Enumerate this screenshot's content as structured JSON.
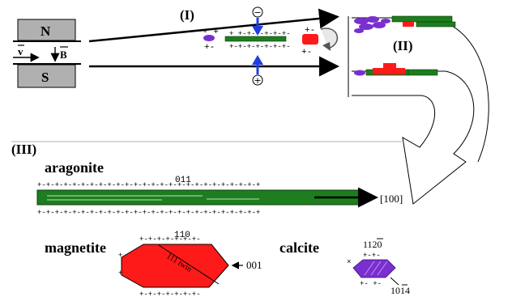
{
  "magnet": {
    "north": "N",
    "south": "S",
    "velocity": "v",
    "field": "B"
  },
  "panels": {
    "stage1": "(I)",
    "stage2": "(II)",
    "stage3": "(III)"
  },
  "charges": {
    "minus": "−",
    "plus": "+"
  },
  "crystals": {
    "aragonite": {
      "name": "aragonite",
      "face": "011",
      "direction": "[100]",
      "charge_row": "+-+-+-+-+-+-+-+-+-+-+-+-+-+-+-+-+-+-+-+-+-+-+-+-+-+"
    },
    "magnetite": {
      "name": "magnetite",
      "face_top": "110",
      "twin": "111 twin",
      "face_right": "001",
      "charge_row": "+-+-+-+-+-+-+-"
    },
    "calcite": {
      "name": "calcite",
      "face_top": "1120",
      "face_bottom": "1014",
      "charge_top": "+-+-",
      "charge_bottom": "+- +-"
    }
  },
  "sign_labels": {
    "pair_pm": "+-",
    "pair_mp": "- +",
    "row_top": "+ +-+-+-+-+-+-",
    "row_bottom": "+-+-+-+-+-+-+-"
  },
  "colors": {
    "aragonite": "#1e7d1e",
    "magnetite": "#ff1a1a",
    "calcite": "#7a2fd0",
    "magnet_fill": "#b0b0b0",
    "arrow_blue": "#1f3fe0"
  }
}
